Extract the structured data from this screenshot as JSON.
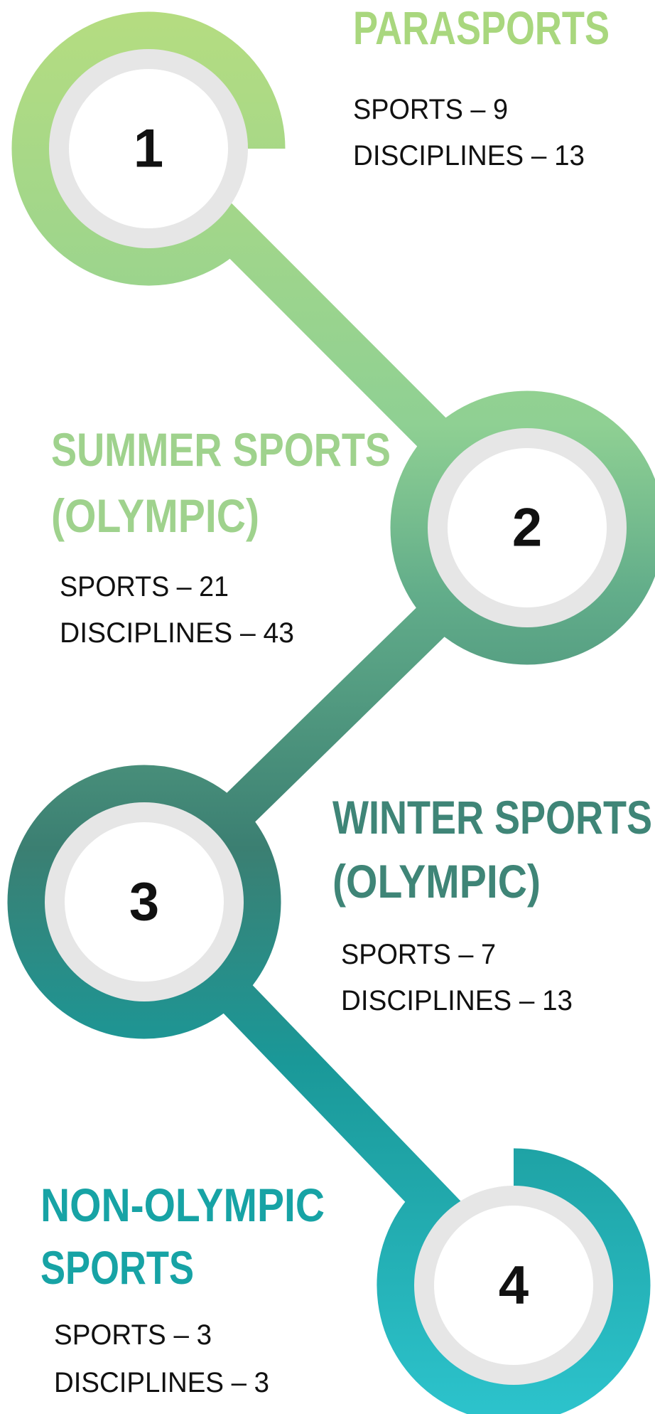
{
  "steps": [
    {
      "number": "1",
      "title": [
        "PARASPORTS"
      ],
      "lines": [
        "SPORTS – 9",
        "DISCIPLINES – 13"
      ]
    },
    {
      "number": "2",
      "title": [
        "SUMMER SPORTS",
        "(OLYMPIC)"
      ],
      "lines": [
        "SPORTS – 21",
        "DISCIPLINES – 43"
      ]
    },
    {
      "number": "3",
      "title": [
        "WINTER SPORTS",
        "(OLYMPIC)"
      ],
      "lines": [
        "SPORTS – 7",
        "DISCIPLINES – 13"
      ]
    },
    {
      "number": "4",
      "title": [
        "NON-OLYMPIC",
        "SPORTS"
      ],
      "lines": [
        "SPORTS – 3",
        "DISCIPLINES – 3"
      ]
    }
  ]
}
